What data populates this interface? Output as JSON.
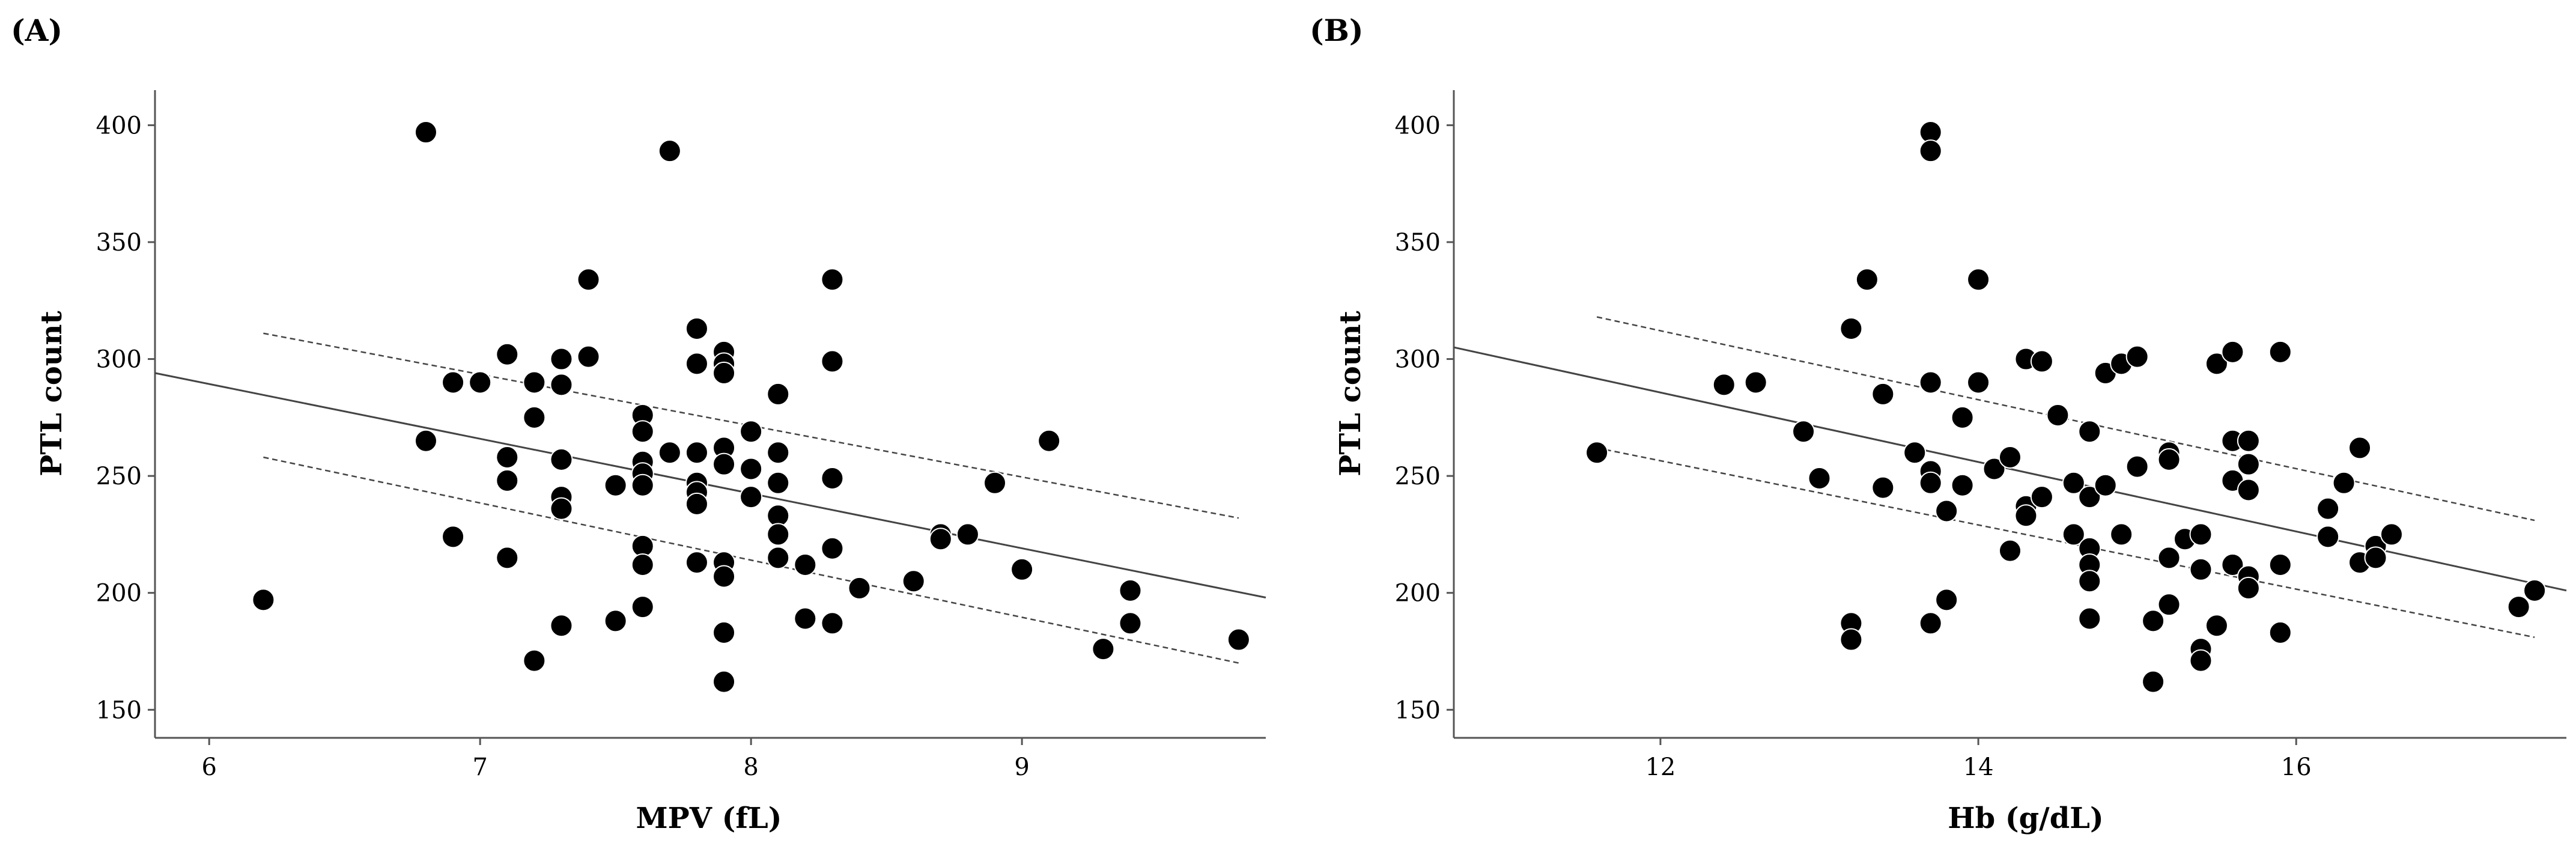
{
  "chart_data": [
    {
      "type": "scatter",
      "panel_label": "(A)",
      "xlabel": "MPV (fL)",
      "ylabel": "PTL count",
      "xlim": [
        5.8,
        9.9
      ],
      "ylim": [
        138,
        415
      ],
      "xticks": [
        6,
        7,
        8,
        9
      ],
      "yticks": [
        150,
        200,
        250,
        300,
        350,
        400
      ],
      "points": [
        [
          6.2,
          197
        ],
        [
          6.8,
          397
        ],
        [
          6.8,
          265
        ],
        [
          6.9,
          290
        ],
        [
          6.9,
          224
        ],
        [
          7.0,
          290
        ],
        [
          7.1,
          302
        ],
        [
          7.1,
          258
        ],
        [
          7.1,
          248
        ],
        [
          7.1,
          215
        ],
        [
          7.2,
          290
        ],
        [
          7.2,
          275
        ],
        [
          7.2,
          171
        ],
        [
          7.3,
          300
        ],
        [
          7.3,
          289
        ],
        [
          7.3,
          257
        ],
        [
          7.3,
          241
        ],
        [
          7.3,
          236
        ],
        [
          7.3,
          186
        ],
        [
          7.4,
          334
        ],
        [
          7.4,
          301
        ],
        [
          7.5,
          246
        ],
        [
          7.5,
          188
        ],
        [
          7.6,
          276
        ],
        [
          7.6,
          269
        ],
        [
          7.6,
          256
        ],
        [
          7.6,
          251
        ],
        [
          7.6,
          246
        ],
        [
          7.6,
          220
        ],
        [
          7.6,
          212
        ],
        [
          7.6,
          194
        ],
        [
          7.7,
          389
        ],
        [
          7.7,
          260
        ],
        [
          7.8,
          313
        ],
        [
          7.8,
          298
        ],
        [
          7.8,
          260
        ],
        [
          7.8,
          247
        ],
        [
          7.8,
          243
        ],
        [
          7.8,
          238
        ],
        [
          7.8,
          213
        ],
        [
          7.9,
          303
        ],
        [
          7.9,
          298
        ],
        [
          7.9,
          294
        ],
        [
          7.9,
          262
        ],
        [
          7.9,
          255
        ],
        [
          7.9,
          213
        ],
        [
          7.9,
          207
        ],
        [
          7.9,
          183
        ],
        [
          7.9,
          162
        ],
        [
          8.0,
          269
        ],
        [
          8.0,
          253
        ],
        [
          8.0,
          241
        ],
        [
          8.1,
          285
        ],
        [
          8.1,
          260
        ],
        [
          8.1,
          247
        ],
        [
          8.1,
          233
        ],
        [
          8.1,
          225
        ],
        [
          8.1,
          215
        ],
        [
          8.2,
          212
        ],
        [
          8.2,
          189
        ],
        [
          8.3,
          334
        ],
        [
          8.3,
          299
        ],
        [
          8.3,
          249
        ],
        [
          8.3,
          219
        ],
        [
          8.3,
          187
        ],
        [
          8.4,
          202
        ],
        [
          8.6,
          205
        ],
        [
          8.7,
          225
        ],
        [
          8.7,
          223
        ],
        [
          8.8,
          225
        ],
        [
          8.9,
          247
        ],
        [
          9.0,
          210
        ],
        [
          9.1,
          265
        ],
        [
          9.3,
          176
        ],
        [
          9.4,
          201
        ],
        [
          9.4,
          187
        ],
        [
          9.8,
          180
        ]
      ],
      "fit_line": {
        "x": [
          5.8,
          9.9
        ],
        "y": [
          294,
          198
        ]
      },
      "ci_upper": {
        "x": [
          6.2,
          9.8
        ],
        "y": [
          311,
          232
        ]
      },
      "ci_lower": {
        "x": [
          6.2,
          9.8
        ],
        "y": [
          258,
          170
        ]
      }
    },
    {
      "type": "scatter",
      "panel_label": "(B)",
      "xlabel": "Hb (g/dL)",
      "ylabel": "PTL count",
      "xlim": [
        10.7,
        17.7
      ],
      "ylim": [
        138,
        415
      ],
      "xticks": [
        12,
        14,
        16
      ],
      "yticks": [
        150,
        200,
        250,
        300,
        350,
        400
      ],
      "points": [
        [
          11.6,
          260
        ],
        [
          12.4,
          289
        ],
        [
          12.6,
          290
        ],
        [
          12.9,
          269
        ],
        [
          13.0,
          249
        ],
        [
          13.2,
          313
        ],
        [
          13.2,
          187
        ],
        [
          13.2,
          180
        ],
        [
          13.3,
          334
        ],
        [
          13.4,
          285
        ],
        [
          13.4,
          245
        ],
        [
          13.6,
          260
        ],
        [
          13.7,
          397
        ],
        [
          13.7,
          389
        ],
        [
          13.7,
          290
        ],
        [
          13.7,
          252
        ],
        [
          13.7,
          247
        ],
        [
          13.7,
          187
        ],
        [
          13.8,
          235
        ],
        [
          13.8,
          197
        ],
        [
          13.9,
          275
        ],
        [
          13.9,
          246
        ],
        [
          14.0,
          334
        ],
        [
          14.0,
          290
        ],
        [
          14.1,
          253
        ],
        [
          14.2,
          258
        ],
        [
          14.2,
          218
        ],
        [
          14.3,
          300
        ],
        [
          14.3,
          237
        ],
        [
          14.3,
          233
        ],
        [
          14.4,
          299
        ],
        [
          14.4,
          241
        ],
        [
          14.5,
          276
        ],
        [
          14.6,
          247
        ],
        [
          14.6,
          225
        ],
        [
          14.7,
          269
        ],
        [
          14.7,
          241
        ],
        [
          14.7,
          219
        ],
        [
          14.7,
          212
        ],
        [
          14.7,
          205
        ],
        [
          14.7,
          189
        ],
        [
          14.8,
          294
        ],
        [
          14.8,
          246
        ],
        [
          14.9,
          298
        ],
        [
          14.9,
          225
        ],
        [
          15.0,
          301
        ],
        [
          15.0,
          254
        ],
        [
          15.1,
          188
        ],
        [
          15.1,
          162
        ],
        [
          15.2,
          260
        ],
        [
          15.2,
          257
        ],
        [
          15.2,
          215
        ],
        [
          15.2,
          195
        ],
        [
          15.3,
          223
        ],
        [
          15.4,
          225
        ],
        [
          15.4,
          210
        ],
        [
          15.4,
          176
        ],
        [
          15.4,
          171
        ],
        [
          15.5,
          298
        ],
        [
          15.5,
          186
        ],
        [
          15.6,
          303
        ],
        [
          15.6,
          265
        ],
        [
          15.6,
          248
        ],
        [
          15.6,
          212
        ],
        [
          15.7,
          265
        ],
        [
          15.7,
          255
        ],
        [
          15.7,
          244
        ],
        [
          15.7,
          207
        ],
        [
          15.7,
          202
        ],
        [
          15.9,
          303
        ],
        [
          15.9,
          212
        ],
        [
          15.9,
          183
        ],
        [
          16.2,
          236
        ],
        [
          16.2,
          224
        ],
        [
          16.3,
          247
        ],
        [
          16.4,
          262
        ],
        [
          16.4,
          213
        ],
        [
          16.5,
          220
        ],
        [
          16.5,
          215
        ],
        [
          16.6,
          225
        ],
        [
          17.4,
          194
        ],
        [
          17.5,
          201
        ]
      ],
      "fit_line": {
        "x": [
          10.7,
          17.7
        ],
        "y": [
          305,
          201
        ]
      },
      "ci_upper": {
        "x": [
          11.6,
          17.5
        ],
        "y": [
          318,
          231
        ]
      },
      "ci_lower": {
        "x": [
          11.6,
          17.5
        ],
        "y": [
          262,
          181
        ]
      }
    }
  ]
}
